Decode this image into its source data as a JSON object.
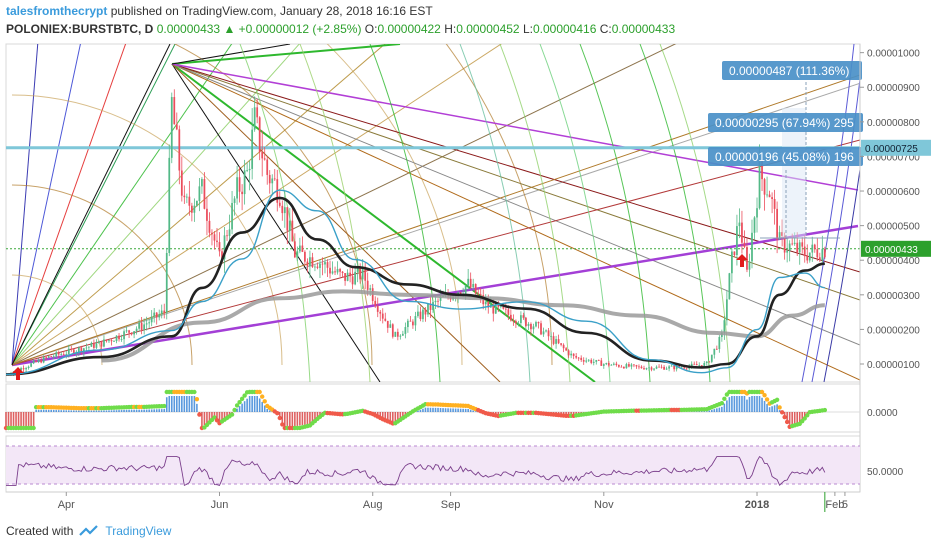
{
  "header": {
    "user": "talesfromthecrypt",
    "published": "published on TradingView.com, January 28, 2018 16:16 EST",
    "symbol": "POLONIEX:BURSTBTC, D",
    "last": "0.00000433",
    "change_icon": "triangle-up-icon",
    "change": "+0.00000012 (+2.85%)",
    "o_label": "O:",
    "o_value": "0.00000422",
    "h_label": "H:",
    "h_value": "0.00000452",
    "l_label": "L:",
    "l_value": "0.00000416",
    "c_label": "C:",
    "c_value": "0.00000433"
  },
  "footer": {
    "created": "Created with",
    "brand": "TradingView",
    "logo_icon": "tradingview-logo-icon"
  },
  "colors": {
    "up": "#2ca02c",
    "candle_up": "#53b987",
    "candle_down": "#eb4d5c",
    "accent": "#3a9bdc",
    "price_tag": "#4a90c8",
    "level_line": "#7fc7d9",
    "rsi_band": "#f3e7f7",
    "rsi_line": "#7b3f8c"
  },
  "chart_data": [
    {
      "type": "candlestick",
      "title": "POLONIEX:BURSTBTC, D",
      "x_tick_labels": [
        "Apr",
        "Jun",
        "Aug",
        "Sep",
        "Nov",
        "2018",
        "Feb",
        "5"
      ],
      "y_tick_labels": [
        "0.00001000",
        "0.00000900",
        "0.00000800",
        "0.00000700",
        "0.00000600",
        "0.00000500",
        "0.00000400",
        "0.00000300",
        "0.00000200",
        "0.00000100"
      ],
      "ylim": [
        3e-07,
        1.06e-05
      ],
      "grid": false,
      "close_path": {
        "x": [
          "2017-03-08",
          "2017-03-25",
          "2017-04-15",
          "2017-05-01",
          "2017-05-10",
          "2017-05-13",
          "2017-05-18",
          "2017-05-25",
          "2017-06-01",
          "2017-06-08",
          "2017-06-12",
          "2017-06-15",
          "2017-06-20",
          "2017-06-25",
          "2017-07-01",
          "2017-07-10",
          "2017-07-20",
          "2017-07-28",
          "2017-08-05",
          "2017-08-10",
          "2017-08-18",
          "2017-08-27",
          "2017-09-03",
          "2017-09-08",
          "2017-09-15",
          "2017-09-25",
          "2017-10-05",
          "2017-10-20",
          "2017-11-01",
          "2017-11-15",
          "2017-12-01",
          "2017-12-12",
          "2017-12-18",
          "2017-12-22",
          "2017-12-25",
          "2017-12-28",
          "2018-01-02",
          "2018-01-06",
          "2018-01-10",
          "2018-01-14",
          "2018-01-20",
          "2018-01-28"
        ],
        "y": [
          7e-07,
          1.2e-06,
          1.6e-06,
          2.1e-06,
          2.5e-06,
          8.5e-06,
          5.5e-06,
          6e-06,
          4e-06,
          6e-06,
          6.5e-06,
          8e-06,
          6.5e-06,
          6e-06,
          4.2e-06,
          4e-06,
          3.5e-06,
          3.6e-06,
          2.4e-06,
          1.8e-06,
          2.3e-06,
          2.8e-06,
          3.1e-06,
          3.3e-06,
          2.7e-06,
          2.4e-06,
          2.1e-06,
          1.2e-06,
          1e-06,
          9e-07,
          9e-07,
          1e-06,
          1.8e-06,
          4e-06,
          5.2e-06,
          3.6e-06,
          6.5e-06,
          6e-06,
          4.5e-06,
          4.4e-06,
          4.2e-06,
          4.33e-06
        ]
      },
      "moving_average_black": {
        "x": [
          "2017-03-08",
          "2017-04-15",
          "2017-05-13",
          "2017-05-25",
          "2017-06-10",
          "2017-06-25",
          "2017-07-10",
          "2017-07-25",
          "2017-08-15",
          "2017-09-05",
          "2017-10-01",
          "2017-10-25",
          "2017-11-20",
          "2017-12-10",
          "2017-12-20",
          "2018-01-01",
          "2018-01-10",
          "2018-01-20",
          "2018-01-28"
        ],
        "y": [
          7e-07,
          1.2e-06,
          1.8e-06,
          3.2e-06,
          4.8e-06,
          5.8e-06,
          4.6e-06,
          3.8e-06,
          3.3e-06,
          3e-06,
          2.6e-06,
          1.9e-06,
          1.1e-06,
          9e-07,
          1e-06,
          1.8e-06,
          3e-06,
          3.7e-06,
          3.9e-06
        ]
      },
      "moving_average_grey": {
        "x": [
          "2017-04-15",
          "2017-05-25",
          "2017-06-25",
          "2017-07-20",
          "2017-08-15",
          "2017-09-15",
          "2017-10-15",
          "2017-11-15",
          "2017-12-15",
          "2018-01-01",
          "2018-01-15",
          "2018-01-28"
        ],
        "y": [
          1.1e-06,
          2.2e-06,
          2.9e-06,
          3.1e-06,
          3e-06,
          2.9e-06,
          2.7e-06,
          2.4e-06,
          1.9e-06,
          1.8e-06,
          2.4e-06,
          2.7e-06
        ]
      },
      "price_levels": [
        {
          "label": "0.00000725",
          "value": 7.25e-06
        },
        {
          "label": "0.00000433",
          "value": 4.33e-06
        }
      ],
      "annotations": [
        {
          "text": "0.00000487 (111.36%)",
          "date": "2018-02-07",
          "value": 9.2e-06
        },
        {
          "text": "0.00000295 (67.94%) 295",
          "date": "2018-02-07",
          "value": 7.4e-06
        },
        {
          "text": "0.00000196 (45.08%) 196",
          "date": "2018-02-07",
          "value": 6.3e-06
        }
      ]
    },
    {
      "type": "histogram",
      "title": "",
      "y_tick_labels": [
        "0.0000"
      ]
    },
    {
      "type": "line",
      "title": "",
      "y_tick_labels": [
        "50.0000"
      ]
    }
  ]
}
